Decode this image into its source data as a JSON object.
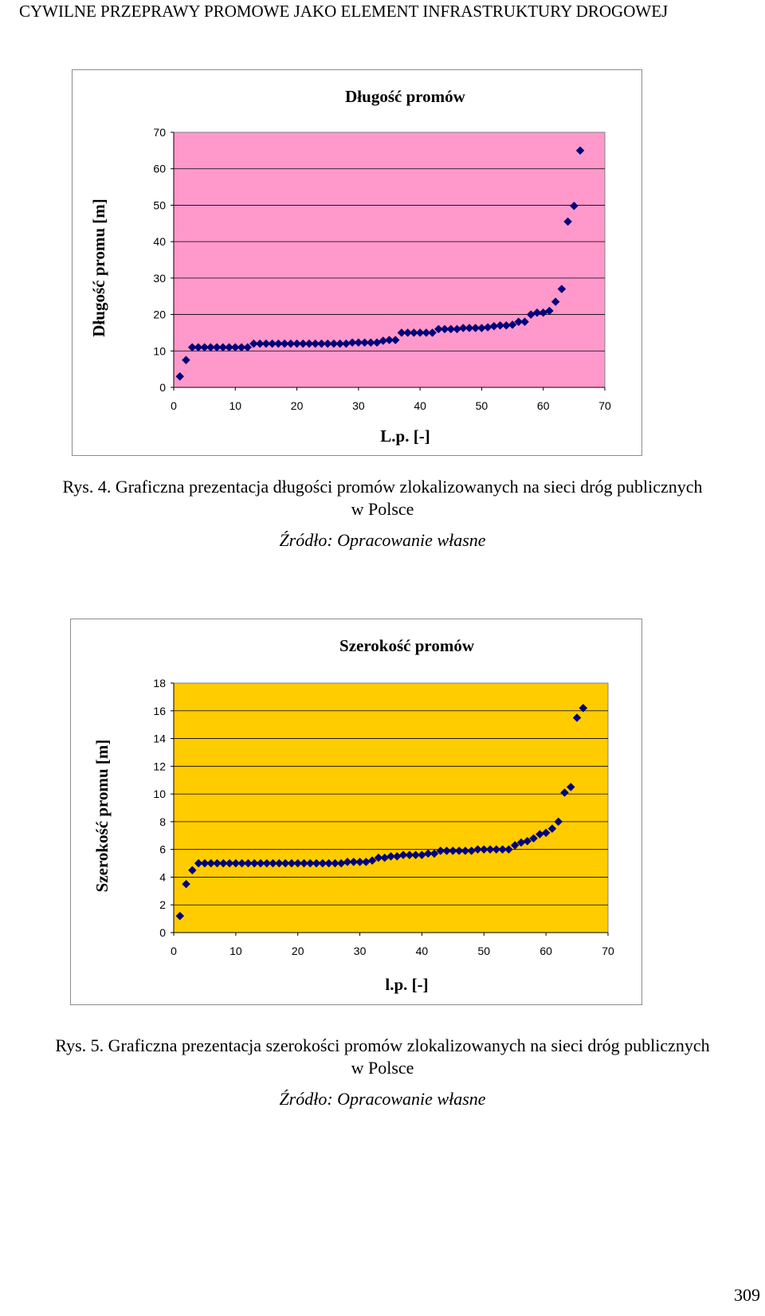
{
  "header": {
    "title": "CYWILNE PRZEPRAWY PROMOWE JAKO ELEMENT INFRASTRUKTURY DROGOWEJ"
  },
  "figures": [
    {
      "caption_line1": "Rys. 4. Graficzna prezentacja długości promów zlokalizowanych na sieci dróg publicznych",
      "caption_line2": "w Polsce",
      "source": "Źródło: Opracowanie własne"
    },
    {
      "caption_line1": "Rys. 5. Graficzna prezentacja szerokości promów zlokalizowanych na sieci dróg publicznych",
      "caption_line2": "w Polsce",
      "source": "Źródło: Opracowanie własne"
    }
  ],
  "page_number": "309",
  "chart_data": [
    {
      "type": "scatter",
      "title": "Długość promów",
      "xlabel": "L.p. [-]",
      "ylabel": "Długość promu [m]",
      "xlim": [
        0,
        70
      ],
      "ylim": [
        0,
        70
      ],
      "xticks": [
        0,
        10,
        20,
        30,
        40,
        50,
        60,
        70
      ],
      "yticks": [
        0,
        10,
        20,
        30,
        40,
        50,
        60,
        70
      ],
      "grid": "horizontal",
      "legend": "none",
      "plot_bg": "#FF99CC",
      "marker_color": "#000080",
      "series": [
        {
          "x": [
            1,
            2,
            3,
            4,
            5,
            6,
            7,
            8,
            9,
            10,
            11,
            12,
            13,
            14,
            15,
            16,
            17,
            18,
            19,
            20,
            21,
            22,
            23,
            24,
            25,
            26,
            27,
            28,
            29,
            30,
            31,
            32,
            33,
            34,
            35,
            36,
            37,
            38,
            39,
            40,
            41,
            42,
            43,
            44,
            45,
            46,
            47,
            48,
            49,
            50,
            51,
            52,
            53,
            54,
            55,
            56,
            57,
            58,
            59,
            60,
            61,
            62,
            63,
            64,
            65,
            66
          ],
          "y": [
            3,
            7.5,
            11,
            11,
            11,
            11,
            11,
            11,
            11,
            11,
            11,
            11,
            12,
            12,
            12,
            12,
            12,
            12,
            12,
            12,
            12,
            12,
            12,
            12,
            12,
            12,
            12,
            12,
            12.3,
            12.3,
            12.3,
            12.3,
            12.3,
            12.8,
            13,
            13,
            15,
            15,
            15,
            15,
            15,
            15,
            16,
            16,
            16,
            16,
            16.3,
            16.3,
            16.3,
            16.3,
            16.5,
            16.8,
            17,
            17,
            17.2,
            18,
            18,
            20,
            20.5,
            20.5,
            21,
            23.5,
            27,
            45.5,
            49.8,
            65
          ]
        }
      ]
    },
    {
      "type": "scatter",
      "title": "Szerokość promów",
      "xlabel": "l.p. [-]",
      "ylabel": "Szerokość promu [m]",
      "xlim": [
        0,
        70
      ],
      "ylim": [
        0,
        18
      ],
      "xticks": [
        0,
        10,
        20,
        30,
        40,
        50,
        60,
        70
      ],
      "yticks": [
        0,
        2,
        4,
        6,
        8,
        10,
        12,
        14,
        16,
        18
      ],
      "grid": "horizontal",
      "legend": "none",
      "plot_bg": "#FFCC00",
      "marker_color": "#000080",
      "series": [
        {
          "x": [
            1,
            2,
            3,
            4,
            5,
            6,
            7,
            8,
            9,
            10,
            11,
            12,
            13,
            14,
            15,
            16,
            17,
            18,
            19,
            20,
            21,
            22,
            23,
            24,
            25,
            26,
            27,
            28,
            29,
            30,
            31,
            32,
            33,
            34,
            35,
            36,
            37,
            38,
            39,
            40,
            41,
            42,
            43,
            44,
            45,
            46,
            47,
            48,
            49,
            50,
            51,
            52,
            53,
            54,
            55,
            56,
            57,
            58,
            59,
            60,
            61,
            62,
            63,
            64,
            65,
            66
          ],
          "y": [
            1.2,
            3.5,
            4.5,
            5,
            5,
            5,
            5,
            5,
            5,
            5,
            5,
            5,
            5,
            5,
            5,
            5,
            5,
            5,
            5,
            5,
            5,
            5,
            5,
            5,
            5,
            5,
            5,
            5.1,
            5.1,
            5.1,
            5.1,
            5.2,
            5.4,
            5.4,
            5.5,
            5.5,
            5.6,
            5.6,
            5.6,
            5.6,
            5.7,
            5.7,
            5.9,
            5.9,
            5.9,
            5.9,
            5.9,
            5.9,
            6,
            6,
            6,
            6,
            6,
            6,
            6.3,
            6.5,
            6.6,
            6.8,
            7.1,
            7.2,
            7.5,
            8,
            10.1,
            10.5,
            15.5,
            16.2
          ]
        }
      ]
    }
  ]
}
